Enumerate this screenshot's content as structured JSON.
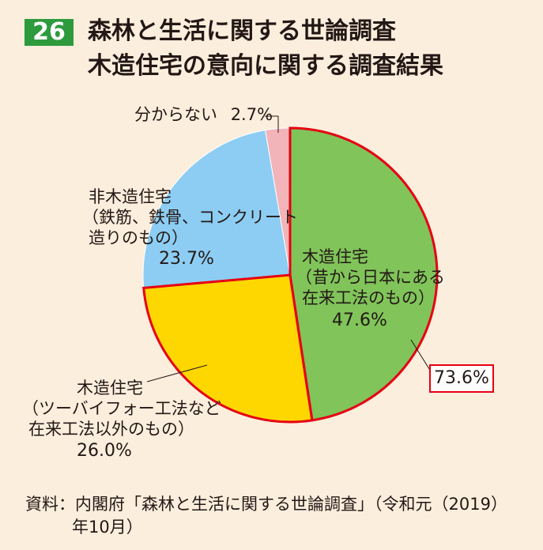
{
  "figure_number": "26",
  "title_line1": "森林と生活に関する世論調査",
  "title_line2": "木造住宅の意向に関する調査結果",
  "chart_data": {
    "type": "pie",
    "start": "12 o'clock, clockwise",
    "slices": [
      {
        "label_lines": [
          "木造住宅",
          "（昔から日本にある",
          "在来工法のもの）"
        ],
        "value": 47.6,
        "value_label": "47.6%",
        "color": "#80c45a",
        "highlighted": true
      },
      {
        "label_lines": [
          "木造住宅",
          "（ツーバイフォー工法など",
          "在来工法以外のもの）"
        ],
        "value": 26.0,
        "value_label": "26.0%",
        "color": "#ffd700",
        "highlighted": true
      },
      {
        "label_lines": [
          "非木造住宅",
          "（鉄筋、鉄骨、コンクリート",
          "造りのもの）"
        ],
        "value": 23.7,
        "value_label": "23.7%",
        "color": "#8dcdf3",
        "highlighted": false
      },
      {
        "label_lines": [
          "分からない"
        ],
        "value": 2.7,
        "value_label": "2.7%",
        "color": "#f2b4b8",
        "highlighted": false
      }
    ],
    "highlight_total_label": "73.6%",
    "highlight_color": "#e60012"
  },
  "source_line1": "資料：内閣府「森林と生活に関する世論調査」（令和元（2019）",
  "source_line2": "年10月）"
}
